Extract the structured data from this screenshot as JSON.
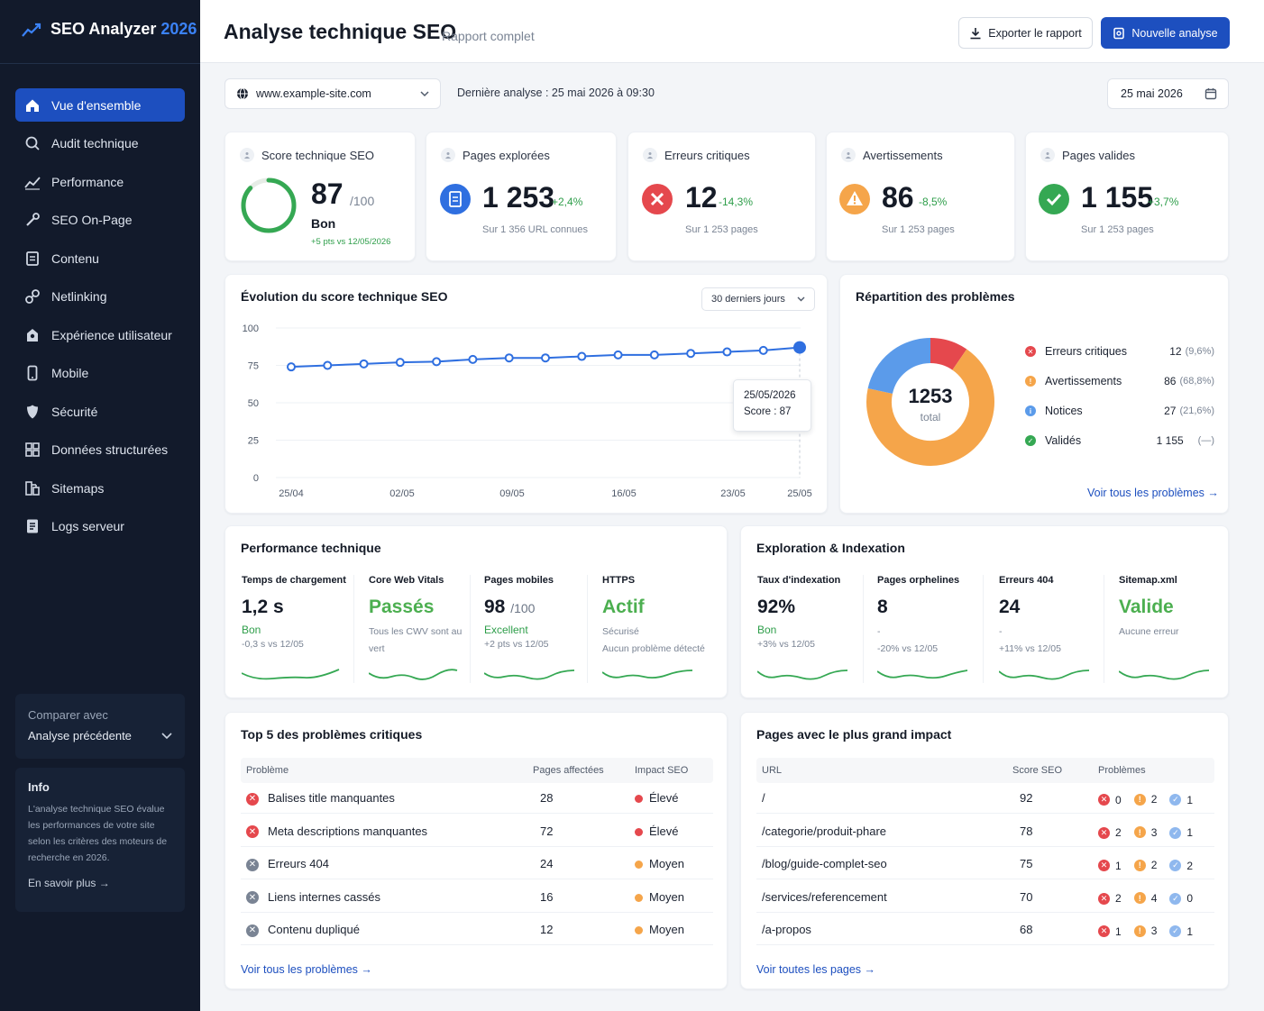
{
  "app": {
    "name": "SEO Analyzer",
    "year": "2026"
  },
  "sidebar": {
    "items": [
      {
        "label": "Vue d'ensemble",
        "icon": "home-icon",
        "active": true
      },
      {
        "label": "Audit technique",
        "icon": "search-icon"
      },
      {
        "label": "Performance",
        "icon": "trend-icon"
      },
      {
        "label": "SEO On-Page",
        "icon": "wrench-icon"
      },
      {
        "label": "Contenu",
        "icon": "document-icon"
      },
      {
        "label": "Netlinking",
        "icon": "link-icon"
      },
      {
        "label": "Expérience utilisateur",
        "icon": "user-experience-icon"
      },
      {
        "label": "Mobile",
        "icon": "mobile-icon"
      },
      {
        "label": "Sécurité",
        "icon": "shield-icon"
      },
      {
        "label": "Données structurées",
        "icon": "structure-icon"
      },
      {
        "label": "Sitemaps",
        "icon": "sitemap-icon"
      },
      {
        "label": "Logs serveur",
        "icon": "logs-icon"
      }
    ],
    "compare": {
      "label": "Comparer avec",
      "value": "Analyse précédente"
    },
    "info": {
      "title": "Info",
      "text": "L'analyse technique SEO évalue les performances de votre site selon les critères des moteurs de recherche en 2026.",
      "link": "En savoir plus →"
    }
  },
  "header": {
    "title": "Analyse technique SEO",
    "subtitle": "Rapport complet",
    "export_label": "Exporter le rapport",
    "new_label": "Nouvelle analyse"
  },
  "toolbar": {
    "site": "www.example-site.com",
    "last_analysis": "Dernière analyse : 25 mai 2026 à 09:30",
    "date": "25 mai 2026"
  },
  "kpis": {
    "score": {
      "label": "Score technique SEO",
      "value": "87",
      "max": "/100",
      "status": "Bon",
      "delta": "+5 pts vs 12/05/2026",
      "fraction": 0.87
    },
    "pages": {
      "label": "Pages explorées",
      "value": "1 253",
      "delta": "+2,4%",
      "foot": "Sur 1 356 URL connues"
    },
    "errors": {
      "label": "Erreurs critiques",
      "value": "12",
      "delta": "-14,3%",
      "foot": "Sur 1 253 pages"
    },
    "warnings": {
      "label": "Avertissements",
      "value": "86",
      "delta": "-8,5%",
      "foot": "Sur 1 253 pages"
    },
    "valid": {
      "label": "Pages valides",
      "value": "1 155",
      "delta": "+3,7%",
      "foot": "Sur 1 253 pages"
    }
  },
  "evolution": {
    "title": "Évolution du score technique SEO",
    "range": "30 derniers jours",
    "tooltip_date": "25/05/2026",
    "tooltip_score": "Score : 87"
  },
  "chart_data": {
    "type": "line",
    "ylim": [
      0,
      100
    ],
    "yticks": [
      "0",
      "25",
      "50",
      "75",
      "100"
    ],
    "xticks": [
      "25/04",
      "02/05",
      "09/05",
      "16/05",
      "23/05",
      "25/05"
    ],
    "x": [
      "25/04",
      "27/04",
      "29/04",
      "02/05",
      "05/05",
      "07/05",
      "09/05",
      "11/05",
      "14/05",
      "16/05",
      "18/05",
      "21/05",
      "23/05",
      "24/05",
      "25/05"
    ],
    "values": [
      74,
      75,
      76,
      77,
      77.5,
      79,
      80,
      80,
      81,
      82,
      82,
      83,
      84,
      85,
      87
    ],
    "color": "#2f6fe0"
  },
  "distribution": {
    "title": "Répartition des problèmes",
    "total": "1253",
    "total_label": "total",
    "items": [
      {
        "label": "Erreurs critiques",
        "value": "12",
        "pct": "(9,6%)",
        "color": "#e5484d",
        "share": 9.6
      },
      {
        "label": "Avertissements",
        "value": "86",
        "pct": "(68,8%)",
        "color": "#f5a54a",
        "share": 68.8
      },
      {
        "label": "Notices",
        "value": "27",
        "pct": "(21,6%)",
        "color": "#5b9bea",
        "share": 21.6
      },
      {
        "label": "Validés",
        "value": "1 155",
        "pct": "(—)",
        "color": "#35a853",
        "share": 0
      }
    ],
    "link": "Voir tous les problèmes →"
  },
  "performance": {
    "title": "Performance technique",
    "metrics": [
      {
        "label": "Temps de chargement",
        "value": "1,2 s",
        "unit": "",
        "status": "Bon",
        "note": "-0,3 s vs 12/05"
      },
      {
        "label": "Core Web Vitals",
        "value": "Passés",
        "unit": "",
        "status": "",
        "note": "Tous les CWV sont au vert"
      },
      {
        "label": "Pages mobiles",
        "value": "98",
        "unit": "/100",
        "status": "Excellent",
        "note": "+2 pts vs 12/05"
      },
      {
        "label": "HTTPS",
        "value": "Actif",
        "unit": "",
        "status": "Sécurisé",
        "note": "Aucun problème détecté"
      }
    ]
  },
  "exploration": {
    "title": "Exploration & Indexation",
    "metrics": [
      {
        "label": "Taux d'indexation",
        "value": "92%",
        "status": "Bon",
        "note": "+3% vs 12/05"
      },
      {
        "label": "Pages orphelines",
        "value": "8",
        "status": "-",
        "note": "-20% vs 12/05"
      },
      {
        "label": "Erreurs 404",
        "value": "24",
        "status": "-",
        "note": "+11% vs 12/05"
      },
      {
        "label": "Sitemap.xml",
        "value": "Valide",
        "status": "Aucune erreur",
        "note": ""
      }
    ]
  },
  "top_problems": {
    "title": "Top 5 des problèmes critiques",
    "headers": {
      "problem": "Problème",
      "pages": "Pages affectées",
      "impact": "Impact SEO"
    },
    "rows": [
      {
        "problem": "Balises title manquantes",
        "pages": "28",
        "impact": "Élevé",
        "level": "high"
      },
      {
        "problem": "Meta descriptions manquantes",
        "pages": "72",
        "impact": "Élevé",
        "level": "high"
      },
      {
        "problem": "Erreurs 404",
        "pages": "24",
        "impact": "Moyen",
        "level": "medium"
      },
      {
        "problem": "Liens internes cassés",
        "pages": "16",
        "impact": "Moyen",
        "level": "medium"
      },
      {
        "problem": "Contenu dupliqué",
        "pages": "12",
        "impact": "Moyen",
        "level": "medium"
      }
    ],
    "link": "Voir tous les problèmes →"
  },
  "impact_pages": {
    "title": "Pages avec le plus grand impact",
    "headers": {
      "url": "URL",
      "score": "Score SEO",
      "problems": "Problèmes"
    },
    "rows": [
      {
        "url": "/",
        "score": "92",
        "errors": "0",
        "warnings": "2",
        "notices": "1"
      },
      {
        "url": "/categorie/produit-phare",
        "score": "78",
        "errors": "2",
        "warnings": "3",
        "notices": "1"
      },
      {
        "url": "/blog/guide-complet-seo",
        "score": "75",
        "errors": "1",
        "warnings": "2",
        "notices": "2"
      },
      {
        "url": "/services/referencement",
        "score": "70",
        "errors": "2",
        "warnings": "4",
        "notices": "0"
      },
      {
        "url": "/a-propos",
        "score": "68",
        "errors": "1",
        "warnings": "3",
        "notices": "1"
      }
    ],
    "link": "Voir toutes les pages →"
  }
}
